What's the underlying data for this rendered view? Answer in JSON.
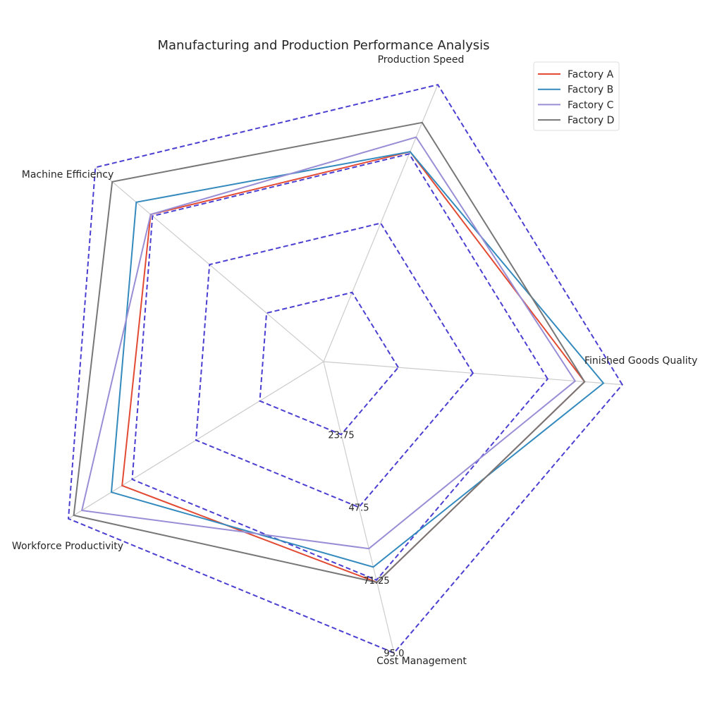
{
  "chart_data": {
    "type": "radar",
    "title": "Manufacturing and Production Performance Analysis",
    "axes": [
      "Finished Goods Quality",
      "Production Speed",
      "Machine Efficiency",
      "Workforce Productivity",
      "Cost Management"
    ],
    "rlim": [
      0,
      95.0
    ],
    "ticks": [
      23.75,
      47.5,
      71.25,
      95.0
    ],
    "tick_labels": [
      "23.75",
      "47.5",
      "71.25",
      "95.0"
    ],
    "grid": true,
    "legend_position": "top-right",
    "series": [
      {
        "name": "Factory A",
        "color": "#e24a33",
        "values": [
          83,
          72,
          72,
          75,
          72
        ]
      },
      {
        "name": "Factory B",
        "color": "#348abd",
        "values": [
          89,
          72,
          78,
          79,
          67
        ]
      },
      {
        "name": "Factory C",
        "color": "#988ed5",
        "values": [
          80,
          77,
          72,
          90,
          61
        ]
      },
      {
        "name": "Factory D",
        "color": "#777777",
        "values": [
          83,
          82,
          88,
          93,
          72
        ]
      }
    ],
    "grid_color": "#cccccc",
    "ring_color": "#4b3fd1"
  }
}
